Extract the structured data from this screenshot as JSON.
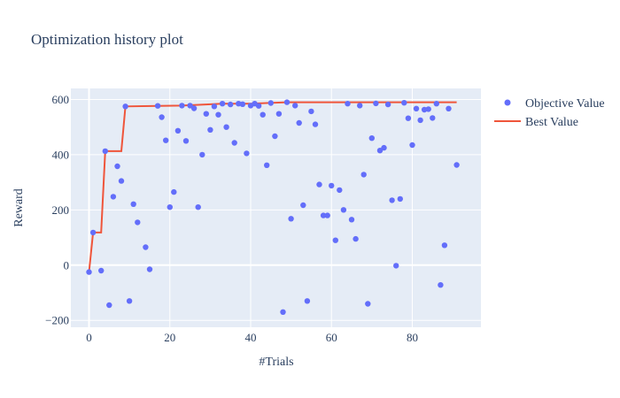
{
  "colors": {
    "plot_bg": "#e5ecf6",
    "grid": "#ffffff",
    "objective": "#636efa",
    "best": "#ef553b",
    "text": "#2a3f5f"
  },
  "chart_data": {
    "type": "scatter",
    "title": "Optimization history plot",
    "xlabel": "#Trials",
    "ylabel": "Reward",
    "xlim": [
      -4.5,
      97
    ],
    "ylim": [
      -225,
      640
    ],
    "xticks": [
      0,
      20,
      40,
      60,
      80
    ],
    "yticks": [
      -200,
      0,
      200,
      400,
      600
    ],
    "ytick_labels": [
      "−200",
      "0",
      "200",
      "400",
      "600"
    ],
    "grid": true,
    "legend_position": "right",
    "series": [
      {
        "name": "Objective Value",
        "mode": "markers",
        "x": [
          0,
          1,
          3,
          4,
          5,
          6,
          7,
          8,
          9,
          10,
          11,
          12,
          14,
          15,
          17,
          18,
          19,
          20,
          21,
          22,
          23,
          24,
          25,
          26,
          27,
          28,
          29,
          30,
          31,
          32,
          33,
          34,
          35,
          36,
          37,
          38,
          39,
          40,
          41,
          42,
          43,
          44,
          45,
          46,
          47,
          48,
          49,
          50,
          51,
          52,
          53,
          54,
          55,
          56,
          57,
          58,
          59,
          60,
          61,
          62,
          63,
          64,
          65,
          66,
          67,
          68,
          69,
          70,
          71,
          72,
          73,
          74,
          75,
          76,
          77,
          78,
          79,
          80,
          81,
          82,
          83,
          84,
          85,
          86,
          87,
          88,
          89,
          91
        ],
        "y": [
          -25,
          118,
          -20,
          413,
          -145,
          248,
          358,
          305,
          575,
          -130,
          221,
          155,
          65,
          -15,
          577,
          536,
          452,
          210,
          265,
          487,
          578,
          450,
          578,
          568,
          210,
          400,
          548,
          490,
          575,
          545,
          585,
          500,
          582,
          443,
          585,
          583,
          405,
          578,
          585,
          577,
          545,
          362,
          587,
          467,
          548,
          -170,
          590,
          168,
          578,
          515,
          217,
          -130,
          557,
          510,
          292,
          180,
          180,
          288,
          90,
          272,
          200,
          585,
          165,
          95,
          578,
          328,
          -140,
          460,
          586,
          415,
          425,
          582,
          235,
          -2,
          240,
          588,
          532,
          435,
          567,
          525,
          563,
          565,
          533,
          585,
          -72,
          72,
          567,
          363
        ]
      },
      {
        "name": "Best Value",
        "mode": "lines",
        "x": [
          0,
          1,
          2,
          3,
          4,
          5,
          6,
          7,
          8,
          9,
          17,
          23,
          33,
          40,
          44,
          49,
          91
        ],
        "y": [
          -25,
          118,
          118,
          118,
          413,
          413,
          413,
          413,
          413,
          575,
          577,
          578,
          585,
          585,
          587,
          590,
          590
        ]
      }
    ]
  }
}
